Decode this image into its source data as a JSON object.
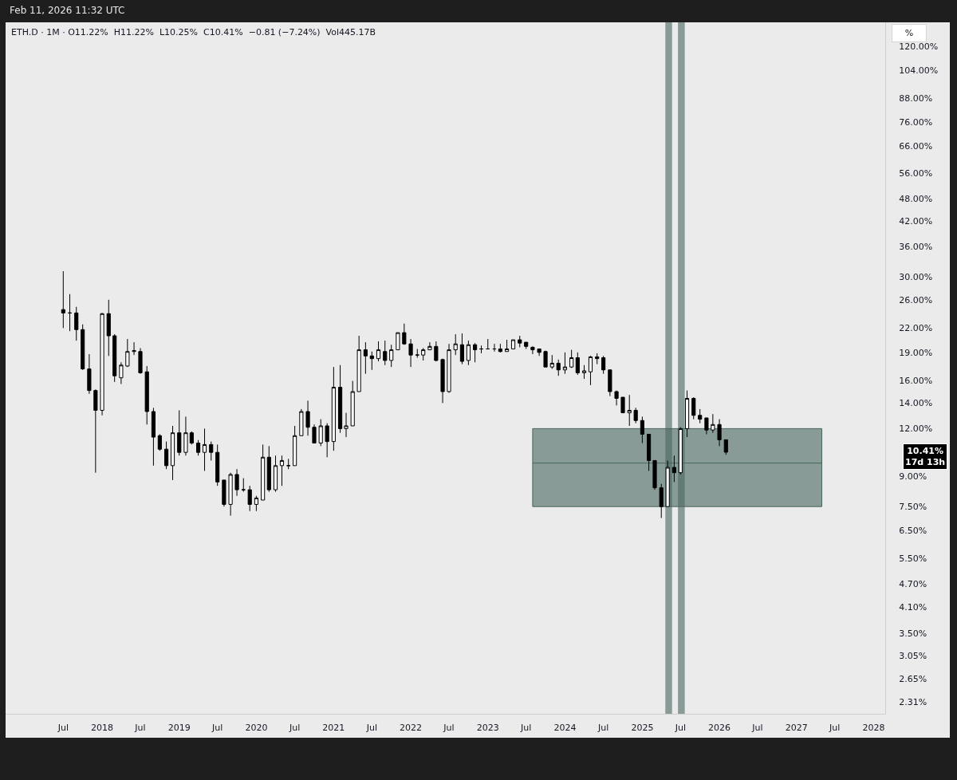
{
  "chart_data": {
    "type": "candlestick",
    "title": "ETH.D · 1M · O11.22%  H11.22%  L10.25%  C10.41%  −0.81 (−7.24%)  Vol445.17B",
    "annotations": [
      "Feb 11, 2026 11:32 UTC",
      "%",
      "10.41%\n17d 13h"
    ],
    "log": true,
    "x": [
      "2017-07",
      "2017-08",
      "2017-09",
      "2017-10",
      "2017-11",
      "2017-12",
      "2018-01",
      "2018-02",
      "2018-03",
      "2018-04",
      "2018-05",
      "2018-06",
      "2018-07",
      "2018-08",
      "2018-09",
      "2018-10",
      "2018-11",
      "2018-12",
      "2019-01",
      "2019-02",
      "2019-03",
      "2019-04",
      "2019-05",
      "2019-06",
      "2019-07",
      "2019-08",
      "2019-09",
      "2019-10",
      "2019-11",
      "2019-12",
      "2020-01",
      "2020-02",
      "2020-03",
      "2020-04",
      "2020-05",
      "2020-06",
      "2020-07",
      "2020-08",
      "2020-09",
      "2020-10",
      "2020-11",
      "2020-12",
      "2021-01",
      "2021-02",
      "2021-03",
      "2021-04",
      "2021-05",
      "2021-06",
      "2021-07",
      "2021-08",
      "2021-09",
      "2021-10",
      "2021-11",
      "2021-12",
      "2022-01",
      "2022-02",
      "2022-03",
      "2022-04",
      "2022-05",
      "2022-06",
      "2022-07",
      "2022-08",
      "2022-09",
      "2022-10",
      "2022-11",
      "2022-12",
      "2023-01",
      "2023-02",
      "2023-03",
      "2023-04",
      "2023-05",
      "2023-06",
      "2023-07",
      "2023-08",
      "2023-09",
      "2023-10",
      "2023-11",
      "2023-12",
      "2024-01",
      "2024-02",
      "2024-03",
      "2024-04",
      "2024-05",
      "2024-06",
      "2024-07",
      "2024-08",
      "2024-09",
      "2024-10",
      "2024-11",
      "2024-12",
      "2025-01",
      "2025-02",
      "2025-03",
      "2025-04",
      "2025-05",
      "2025-06",
      "2025-07",
      "2025-08",
      "2025-09",
      "2025-10",
      "2025-11",
      "2025-12",
      "2026-01",
      "2026-02"
    ],
    "ohlc": [
      [
        24.6,
        31.0,
        22.0,
        24.1
      ],
      [
        24.1,
        27.0,
        21.6,
        24.1
      ],
      [
        24.1,
        25.0,
        20.4,
        21.8
      ],
      [
        21.8,
        22.5,
        17.1,
        17.2
      ],
      [
        17.2,
        18.8,
        14.8,
        15.1
      ],
      [
        15.1,
        15.2,
        9.2,
        13.4
      ],
      [
        13.4,
        24.1,
        13.0,
        24.0
      ],
      [
        24.0,
        26.1,
        18.6,
        21.0
      ],
      [
        21.0,
        21.2,
        15.9,
        16.5
      ],
      [
        16.3,
        17.9,
        15.7,
        17.6
      ],
      [
        17.5,
        20.6,
        17.4,
        19.1
      ],
      [
        19.1,
        20.2,
        18.7,
        19.2
      ],
      [
        19.1,
        19.5,
        16.7,
        16.8
      ],
      [
        16.9,
        17.5,
        12.3,
        13.3
      ],
      [
        13.3,
        13.6,
        9.6,
        11.4
      ],
      [
        11.5,
        11.6,
        10.5,
        10.6
      ],
      [
        10.6,
        11.1,
        9.4,
        9.6
      ],
      [
        9.6,
        12.2,
        8.8,
        11.7
      ],
      [
        11.7,
        13.4,
        10.2,
        10.4
      ],
      [
        10.4,
        12.9,
        10.2,
        11.7
      ],
      [
        11.7,
        11.8,
        10.9,
        11.0
      ],
      [
        11.0,
        11.2,
        10.2,
        10.4
      ],
      [
        10.4,
        12.0,
        9.3,
        10.9
      ],
      [
        10.9,
        11.1,
        9.9,
        10.4
      ],
      [
        10.4,
        10.9,
        8.5,
        8.7
      ],
      [
        8.8,
        8.8,
        7.5,
        7.6
      ],
      [
        7.6,
        9.2,
        7.1,
        9.1
      ],
      [
        9.1,
        9.4,
        8.0,
        8.3
      ],
      [
        8.3,
        8.9,
        8.2,
        8.3
      ],
      [
        8.3,
        8.5,
        7.3,
        7.6
      ],
      [
        7.6,
        8.0,
        7.3,
        7.9
      ],
      [
        7.8,
        10.9,
        7.8,
        10.1
      ],
      [
        10.1,
        10.8,
        8.2,
        8.3
      ],
      [
        8.3,
        10.2,
        8.2,
        9.6
      ],
      [
        9.6,
        10.2,
        8.5,
        9.9
      ],
      [
        9.6,
        10.0,
        9.4,
        9.6
      ],
      [
        9.6,
        12.2,
        9.6,
        11.5
      ],
      [
        11.5,
        13.5,
        11.5,
        13.3
      ],
      [
        13.3,
        14.2,
        11.5,
        12.1
      ],
      [
        12.1,
        12.3,
        11.0,
        11.0
      ],
      [
        11.0,
        12.7,
        10.8,
        12.2
      ],
      [
        12.2,
        12.4,
        10.1,
        11.1
      ],
      [
        11.1,
        17.4,
        10.5,
        15.4
      ],
      [
        15.4,
        17.6,
        11.7,
        12.0
      ],
      [
        12.0,
        13.2,
        11.4,
        12.2
      ],
      [
        12.2,
        16.0,
        12.2,
        15.0
      ],
      [
        15.0,
        21.0,
        15.0,
        19.3
      ],
      [
        19.3,
        20.2,
        16.7,
        18.6
      ],
      [
        18.6,
        19.1,
        17.1,
        18.3
      ],
      [
        18.3,
        20.3,
        18.0,
        19.3
      ],
      [
        19.1,
        20.4,
        17.6,
        18.1
      ],
      [
        18.1,
        19.9,
        17.4,
        19.3
      ],
      [
        19.3,
        21.4,
        19.3,
        21.4
      ],
      [
        21.4,
        22.6,
        19.9,
        20.0
      ],
      [
        20.0,
        20.6,
        17.4,
        18.7
      ],
      [
        18.7,
        19.4,
        18.4,
        18.7
      ],
      [
        18.7,
        19.5,
        18.1,
        19.3
      ],
      [
        19.3,
        20.2,
        19.3,
        19.7
      ],
      [
        19.7,
        20.3,
        18.0,
        18.1
      ],
      [
        18.2,
        18.3,
        14.0,
        15.0
      ],
      [
        15.0,
        20.0,
        14.9,
        19.3
      ],
      [
        19.3,
        21.2,
        18.7,
        20.0
      ],
      [
        19.9,
        21.3,
        17.7,
        18.0
      ],
      [
        18.1,
        20.4,
        17.6,
        19.9
      ],
      [
        19.9,
        20.1,
        17.9,
        19.3
      ],
      [
        19.4,
        19.8,
        18.9,
        19.4
      ],
      [
        19.4,
        20.6,
        19.4,
        19.4
      ],
      [
        19.4,
        20.0,
        19.1,
        19.4
      ],
      [
        19.4,
        20.0,
        19.0,
        19.1
      ],
      [
        19.1,
        20.5,
        19.1,
        19.4
      ],
      [
        19.4,
        20.5,
        19.4,
        20.5
      ],
      [
        20.5,
        21.0,
        19.6,
        20.1
      ],
      [
        20.2,
        20.2,
        19.4,
        19.7
      ],
      [
        19.6,
        19.7,
        18.8,
        19.3
      ],
      [
        19.4,
        19.4,
        18.6,
        19.0
      ],
      [
        19.1,
        19.2,
        17.4,
        17.4
      ],
      [
        17.4,
        18.7,
        17.2,
        17.8
      ],
      [
        17.8,
        18.2,
        16.5,
        17.1
      ],
      [
        17.1,
        19.0,
        16.7,
        17.4
      ],
      [
        17.4,
        19.3,
        17.3,
        18.4
      ],
      [
        18.4,
        19.0,
        16.6,
        16.8
      ],
      [
        16.8,
        17.6,
        16.2,
        17.0
      ],
      [
        16.9,
        18.6,
        15.6,
        18.5
      ],
      [
        18.5,
        18.9,
        17.7,
        18.3
      ],
      [
        18.4,
        18.6,
        16.7,
        17.1
      ],
      [
        17.1,
        17.1,
        14.6,
        15.0
      ],
      [
        15.0,
        15.1,
        13.8,
        14.4
      ],
      [
        14.5,
        14.5,
        13.2,
        13.2
      ],
      [
        13.2,
        14.7,
        12.2,
        13.4
      ],
      [
        13.4,
        13.6,
        12.4,
        12.6
      ],
      [
        12.6,
        12.9,
        11.0,
        11.6
      ],
      [
        11.6,
        11.6,
        9.3,
        9.9
      ],
      [
        9.9,
        9.9,
        8.3,
        8.4
      ],
      [
        8.4,
        8.6,
        7.0,
        7.5
      ],
      [
        7.5,
        9.9,
        7.5,
        9.5
      ],
      [
        9.5,
        10.2,
        8.7,
        9.2
      ],
      [
        9.2,
        12.1,
        9.1,
        12.0
      ],
      [
        12.0,
        15.1,
        11.4,
        14.4
      ],
      [
        14.4,
        14.5,
        12.7,
        13.0
      ],
      [
        13.0,
        13.5,
        12.4,
        12.7
      ],
      [
        12.8,
        12.8,
        11.6,
        11.9
      ],
      [
        11.9,
        13.1,
        11.7,
        12.3
      ],
      [
        12.3,
        12.7,
        10.8,
        11.22
      ],
      [
        11.22,
        11.22,
        10.25,
        10.41
      ]
    ],
    "series": [
      {
        "type": "line",
        "x": [
          "2023-08-01",
          "2027-05-01"
        ],
        "values": [
          9.75,
          9.75
        ],
        "lower": [
          7.5,
          7.5
        ],
        "upper": [
          12.0,
          12.0
        ],
        "color": "#48665f"
      }
    ],
    "bands": [
      {
        "axis": "x",
        "from": "2025-04-20",
        "to": "2025-05-22",
        "color": "#48665f"
      },
      {
        "axis": "x",
        "from": "2025-06-19",
        "to": "2025-07-21",
        "color": "#48665f"
      }
    ],
    "xlim": [
      "2016-10-01",
      "2028-02-25"
    ],
    "xticks": [
      {
        "value": "2017-07",
        "label": "Jul"
      },
      {
        "value": "2018-01",
        "label": "2018"
      },
      {
        "value": "2018-07",
        "label": "Jul"
      },
      {
        "value": "2019-01",
        "label": "2019"
      },
      {
        "value": "2019-07",
        "label": "Jul"
      },
      {
        "value": "2020-01",
        "label": "2020"
      },
      {
        "value": "2020-07",
        "label": "Jul"
      },
      {
        "value": "2021-01",
        "label": "2021"
      },
      {
        "value": "2021-07",
        "label": "Jul"
      },
      {
        "value": "2022-01",
        "label": "2022"
      },
      {
        "value": "2022-07",
        "label": "Jul"
      },
      {
        "value": "2023-01",
        "label": "2023"
      },
      {
        "value": "2023-07",
        "label": "Jul"
      },
      {
        "value": "2024-01",
        "label": "2024"
      },
      {
        "value": "2024-07",
        "label": "Jul"
      },
      {
        "value": "2025-01",
        "label": "2025"
      },
      {
        "value": "2025-07",
        "label": "Jul"
      },
      {
        "value": "2026-01",
        "label": "2026"
      },
      {
        "value": "2026-07",
        "label": "Jul"
      },
      {
        "value": "2027-01",
        "label": "2027"
      },
      {
        "value": "2027-07",
        "label": "Jul"
      },
      {
        "value": "2028-01",
        "label": "2028"
      }
    ],
    "ylim": [
      2.15,
      139
    ],
    "yticks": [
      {
        "value": 120,
        "label": "120.00%"
      },
      {
        "value": 104,
        "label": "104.00%"
      },
      {
        "value": 88,
        "label": "88.00%"
      },
      {
        "value": 76,
        "label": "76.00%"
      },
      {
        "value": 66,
        "label": "66.00%"
      },
      {
        "value": 56,
        "label": "56.00%"
      },
      {
        "value": 48,
        "label": "48.00%"
      },
      {
        "value": 42,
        "label": "42.00%"
      },
      {
        "value": 36,
        "label": "36.00%"
      },
      {
        "value": 30,
        "label": "30.00%"
      },
      {
        "value": 26,
        "label": "26.00%"
      },
      {
        "value": 22,
        "label": "22.00%"
      },
      {
        "value": 19,
        "label": "19.00%"
      },
      {
        "value": 16,
        "label": "16.00%"
      },
      {
        "value": 14,
        "label": "14.00%"
      },
      {
        "value": 12,
        "label": "12.00%"
      },
      {
        "value": 9,
        "label": "9.00%"
      },
      {
        "value": 7.5,
        "label": "7.50%"
      },
      {
        "value": 6.5,
        "label": "6.50%"
      },
      {
        "value": 5.5,
        "label": "5.50%"
      },
      {
        "value": 4.7,
        "label": "4.70%"
      },
      {
        "value": 4.1,
        "label": "4.10%"
      },
      {
        "value": 3.5,
        "label": "3.50%"
      },
      {
        "value": 3.05,
        "label": "3.05%"
      },
      {
        "value": 2.65,
        "label": "2.65%"
      },
      {
        "value": 2.31,
        "label": "2.31%"
      }
    ]
  }
}
